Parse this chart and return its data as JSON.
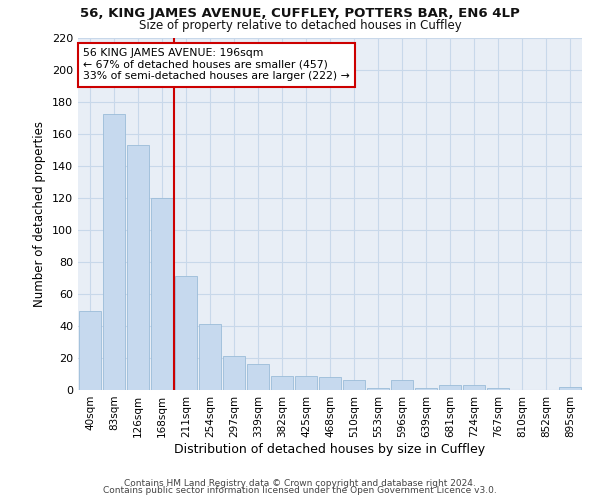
{
  "title1": "56, KING JAMES AVENUE, CUFFLEY, POTTERS BAR, EN6 4LP",
  "title2": "Size of property relative to detached houses in Cuffley",
  "xlabel": "Distribution of detached houses by size in Cuffley",
  "ylabel": "Number of detached properties",
  "categories": [
    "40sqm",
    "83sqm",
    "126sqm",
    "168sqm",
    "211sqm",
    "254sqm",
    "297sqm",
    "339sqm",
    "382sqm",
    "425sqm",
    "468sqm",
    "510sqm",
    "553sqm",
    "596sqm",
    "639sqm",
    "681sqm",
    "724sqm",
    "767sqm",
    "810sqm",
    "852sqm",
    "895sqm"
  ],
  "values": [
    49,
    172,
    153,
    120,
    71,
    41,
    21,
    16,
    9,
    9,
    8,
    6,
    1,
    6,
    1,
    3,
    3,
    1,
    0,
    0,
    2
  ],
  "bar_color": "#c6d9ee",
  "bar_edge_color": "#9bbcd8",
  "grid_color": "#c8d8ea",
  "bg_color": "#e8eef6",
  "annotation_line1": "56 KING JAMES AVENUE: 196sqm",
  "annotation_line2": "← 67% of detached houses are smaller (457)",
  "annotation_line3": "33% of semi-detached houses are larger (222) →",
  "vline_color": "#cc0000",
  "box_edge_color": "#cc0000",
  "footer1": "Contains HM Land Registry data © Crown copyright and database right 2024.",
  "footer2": "Contains public sector information licensed under the Open Government Licence v3.0.",
  "ylim": [
    0,
    220
  ],
  "yticks": [
    0,
    20,
    40,
    60,
    80,
    100,
    120,
    140,
    160,
    180,
    200,
    220
  ]
}
